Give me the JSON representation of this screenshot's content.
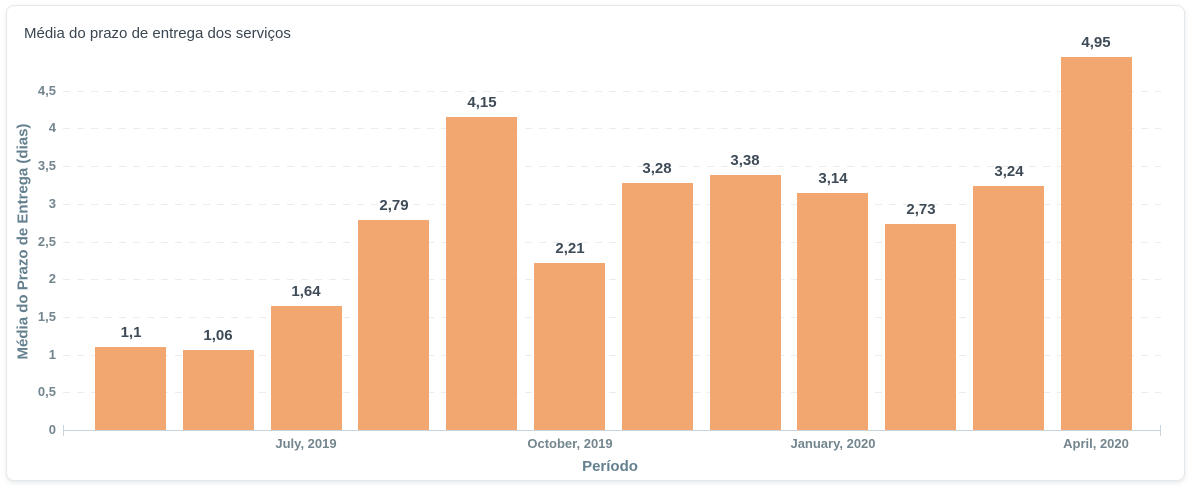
{
  "card": {
    "title": "Média do prazo de entrega dos serviços"
  },
  "chart_data": {
    "type": "bar",
    "title": "Média do prazo de entrega dos serviços",
    "xlabel": "Período",
    "ylabel": "Média do Prazo de Entrega (dias)",
    "values": [
      1.1,
      1.06,
      1.64,
      2.79,
      4.15,
      2.21,
      3.28,
      3.38,
      3.14,
      2.73,
      3.24,
      4.95
    ],
    "value_labels": [
      "1,1",
      "1,06",
      "1,64",
      "2,79",
      "4,15",
      "2,21",
      "3,28",
      "3,38",
      "3,14",
      "2,73",
      "3,24",
      "4,95"
    ],
    "x_tick_positions": [
      2,
      5,
      8,
      11
    ],
    "x_tick_labels": [
      "July, 2019",
      "October, 2019",
      "January, 2020",
      "April, 2020"
    ],
    "y_ticks": [
      {
        "value": 0,
        "label": "0"
      },
      {
        "value": 0.5,
        "label": "0,5"
      },
      {
        "value": 1,
        "label": "1"
      },
      {
        "value": 1.5,
        "label": "1,5"
      },
      {
        "value": 2,
        "label": "2"
      },
      {
        "value": 2.5,
        "label": "2,5"
      },
      {
        "value": 3,
        "label": "3"
      },
      {
        "value": 3.5,
        "label": "3,5"
      },
      {
        "value": 4,
        "label": "4"
      },
      {
        "value": 4.5,
        "label": "4,5"
      }
    ],
    "ylim": [
      0,
      5
    ],
    "grid": "horizontal-dashed",
    "legend": "none",
    "decimal_separator": ",",
    "colors": {
      "bar": "#f2a670",
      "title": "#3a4550",
      "value_label": "#3e4b57",
      "tick": "#73858e",
      "axis_title": "#64808f",
      "grid": "#ececec",
      "axis_line": "#c9d3db",
      "card_border": "#e4e8ec"
    }
  }
}
